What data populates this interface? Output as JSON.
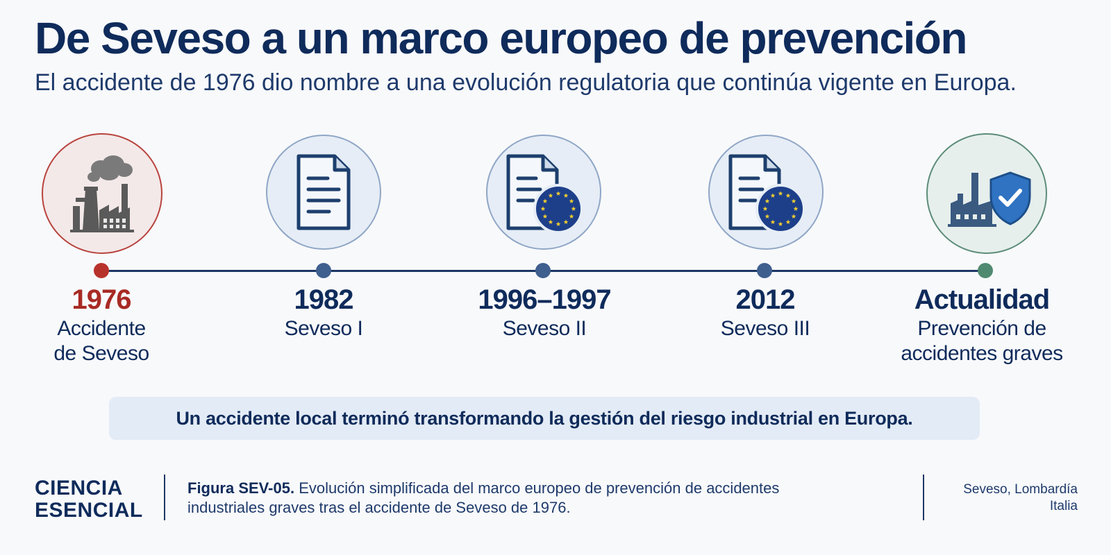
{
  "title": "De Seveso a un marco europeo de prevención",
  "subtitle": "El accidente de 1976 dio nombre a una evolución regulatoria que continúa vigente en Europa.",
  "milestones": [
    {
      "year": "1976",
      "desc_line1": "Accidente",
      "desc_line2": "de Seveso",
      "icon": "factory-smoke-icon",
      "color": "#a82a24"
    },
    {
      "year": "1982",
      "desc_line1": "Seveso I",
      "desc_line2": "",
      "icon": "document-icon",
      "color": "#3f5f8f"
    },
    {
      "year": "1996–1997",
      "desc_line1": "Seveso II",
      "desc_line2": "",
      "icon": "document-eu-icon",
      "color": "#3f5f8f"
    },
    {
      "year": "2012",
      "desc_line1": "Seveso III",
      "desc_line2": "",
      "icon": "document-eu-icon",
      "color": "#3f5f8f"
    },
    {
      "year": "Actualidad",
      "desc_line1": "Prevención de",
      "desc_line2": "accidentes graves",
      "icon": "factory-shield-icon",
      "color": "#4f8a70"
    }
  ],
  "banner": "Un accidente local terminó transformando la gestión del riesgo industrial en Europa.",
  "footer": {
    "brand_line1": "CIENCIA",
    "brand_line2": "ESENCIAL",
    "caption_label": "Figura SEV-05.",
    "caption_line1": "Evolución simplificada del marco europeo de prevención de accidentes",
    "caption_line2": "industriales graves tras el accidente de Seveso de 1976.",
    "location_line1": "Seveso, Lombardía",
    "location_line2": "Italia"
  }
}
